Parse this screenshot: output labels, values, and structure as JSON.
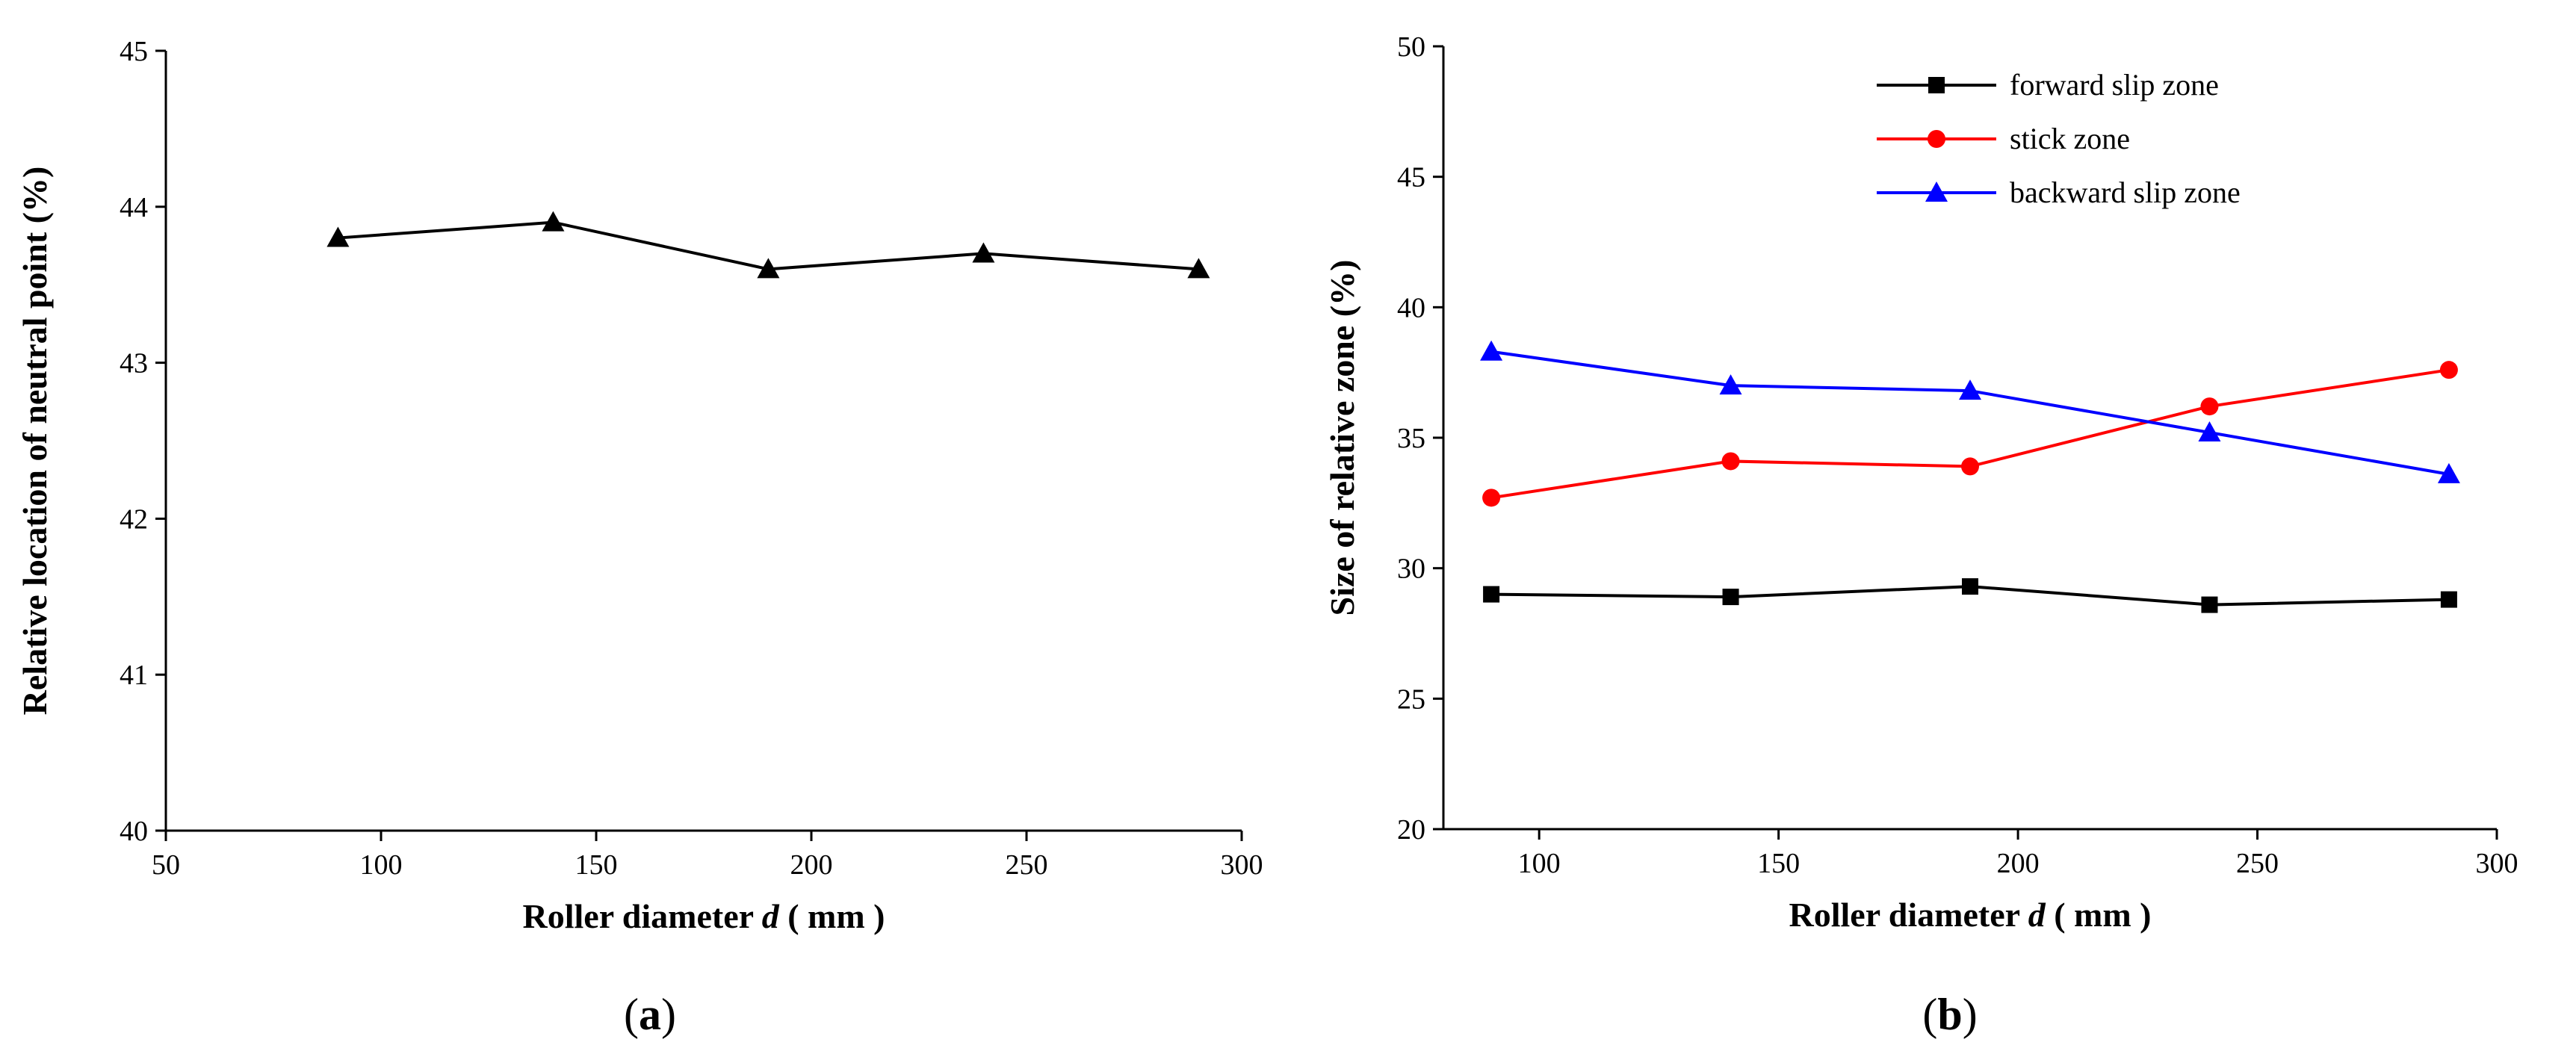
{
  "chart_data": [
    {
      "type": "line",
      "panel_label": "a",
      "xlabel": "Roller diameter",
      "xlabel_var": "d",
      "xlabel_unit": " ( mm )",
      "ylabel": "Relative location of neutral point (%)",
      "xlim": [
        50,
        300
      ],
      "ylim": [
        40,
        45
      ],
      "xticks": [
        50,
        100,
        150,
        200,
        250,
        300
      ],
      "yticks": [
        40,
        41,
        42,
        43,
        44,
        45
      ],
      "legend": null,
      "series": [
        {
          "name": "neutral point",
          "color": "#000000",
          "marker": "triangle",
          "x": [
            90,
            140,
            190,
            240,
            290
          ],
          "y": [
            43.8,
            43.9,
            43.6,
            43.7,
            43.6
          ]
        }
      ]
    },
    {
      "type": "line",
      "panel_label": "b",
      "xlabel": "Roller diameter",
      "xlabel_var": "d",
      "xlabel_unit": " ( mm )",
      "ylabel": "Size of relative zone (%)",
      "xlim": [
        80,
        300
      ],
      "ylim": [
        20,
        50
      ],
      "xticks": [
        100,
        150,
        200,
        250,
        300
      ],
      "yticks": [
        20,
        25,
        30,
        35,
        40,
        45,
        50
      ],
      "legend": "top-center",
      "series": [
        {
          "name": "forward slip zone",
          "color": "#000000",
          "marker": "square",
          "x": [
            90,
            140,
            190,
            240,
            290
          ],
          "y": [
            29.0,
            28.9,
            29.3,
            28.6,
            28.8
          ]
        },
        {
          "name": "stick zone",
          "color": "#ff0000",
          "marker": "circle",
          "x": [
            90,
            140,
            190,
            240,
            290
          ],
          "y": [
            32.7,
            34.1,
            33.9,
            36.2,
            37.6
          ]
        },
        {
          "name": "backward slip zone",
          "color": "#0000ff",
          "marker": "triangle",
          "x": [
            90,
            140,
            190,
            240,
            290
          ],
          "y": [
            38.3,
            37.0,
            36.8,
            35.2,
            33.6
          ]
        }
      ]
    }
  ]
}
